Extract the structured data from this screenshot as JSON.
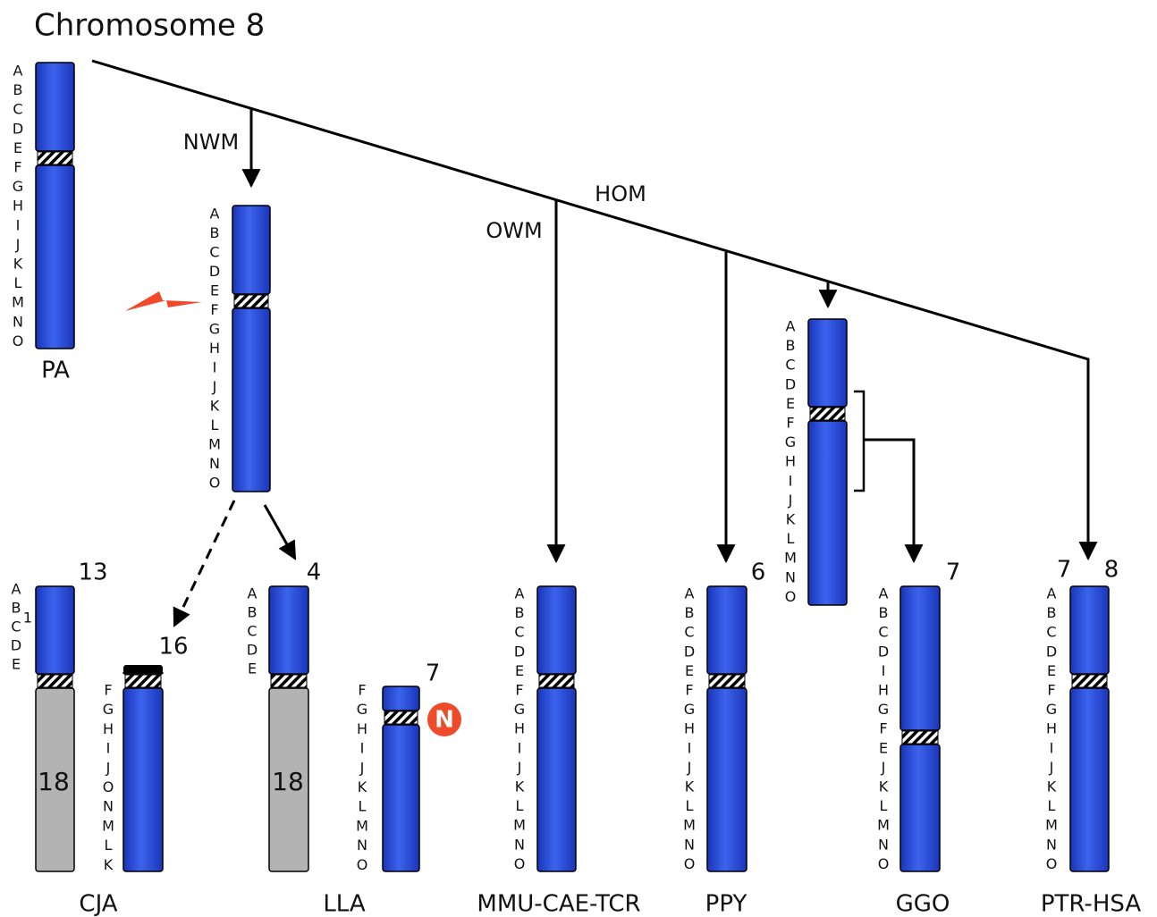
{
  "title": "Chromosome 8",
  "branches": {
    "nwm": "NWM",
    "hom": "HOM",
    "owm": "OWM"
  },
  "species": {
    "pa": "PA",
    "cja": "CJA",
    "lla": "LLA",
    "mmu": "MMU-CAE-TCR",
    "ppy": "PPY",
    "ggo": "GGO",
    "ptr": "PTR-HSA"
  },
  "chromosomes": [
    {
      "letters": [
        "A",
        "B",
        "C",
        "D",
        "E",
        "F",
        "G",
        "H",
        "I",
        "J",
        "K",
        "L",
        "M",
        "N",
        "O"
      ]
    },
    {
      "letters": [
        "A",
        "B",
        "C",
        "D",
        "E",
        "F",
        "G",
        "H",
        "I",
        "J",
        "K",
        "L",
        "M",
        "N",
        "O"
      ]
    },
    {
      "letters": [
        "A",
        "B",
        "C",
        "D",
        "E"
      ],
      "numbers": [
        13
      ],
      "segment": "18",
      "mark": "1"
    },
    {
      "letters": [
        "F",
        "G",
        "H",
        "I",
        "J",
        "O",
        "N",
        "M",
        "L",
        "K"
      ],
      "numbers": [
        16
      ]
    },
    {
      "letters": [
        "A",
        "B",
        "C",
        "D",
        "E"
      ],
      "numbers": [
        4
      ],
      "segment": "18"
    },
    {
      "letters": [
        "F",
        "G",
        "H",
        "I",
        "J",
        "K",
        "L",
        "M",
        "N",
        "O"
      ],
      "numbers": [
        7
      ],
      "badge": "N"
    },
    {
      "letters": [
        "A",
        "B",
        "C",
        "D",
        "E",
        "F",
        "G",
        "H",
        "I",
        "J",
        "K",
        "L",
        "M",
        "N",
        "O"
      ]
    },
    {
      "letters": [
        "A",
        "B",
        "C",
        "D",
        "E",
        "F",
        "G",
        "H",
        "I",
        "J",
        "K",
        "L",
        "M",
        "N",
        "O"
      ],
      "numbers": [
        6
      ]
    },
    {
      "letters": [
        "A",
        "B",
        "C",
        "D",
        "E",
        "F",
        "G",
        "H",
        "I",
        "J",
        "K",
        "L",
        "M",
        "N",
        "O"
      ]
    },
    {
      "letters": [
        "A",
        "B",
        "C",
        "D",
        "I",
        "H",
        "G",
        "F",
        "E",
        "J",
        "K",
        "L",
        "M",
        "N",
        "O"
      ],
      "numbers": [
        7
      ]
    },
    {
      "letters": [
        "A",
        "B",
        "C",
        "D",
        "E",
        "F",
        "G",
        "H",
        "I",
        "J",
        "K",
        "L",
        "M",
        "N",
        "O"
      ],
      "numbers": [
        7,
        8
      ]
    }
  ]
}
